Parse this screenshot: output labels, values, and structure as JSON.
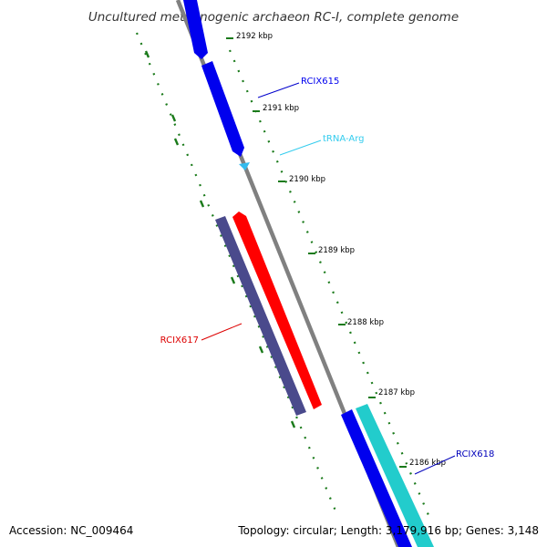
{
  "title": "Uncultured methanogenic archaeon RC-I, complete genome",
  "footer": {
    "accession": "Accession: NC_009464",
    "summary": "Topology: circular; Length: 3,179,916 bp; Genes: 3,148"
  },
  "ticks": [
    "2192 kbp",
    "2191 kbp",
    "2190 kbp",
    "2189 kbp",
    "2188 kbp",
    "2187 kbp",
    "2186 kbp"
  ],
  "features": [
    {
      "label": "RCIX615",
      "color": "#0000ee"
    },
    {
      "label": "tRNA-Arg",
      "color": "#33ccee"
    },
    {
      "label": "RCIX617",
      "color": "#dd0000"
    },
    {
      "label": "RCIX618",
      "color": "#0000bb"
    }
  ],
  "colors": {
    "backbone": "#888888",
    "tick": "#227722",
    "gene_blue": "#0000ee",
    "gene_red": "#ff0000",
    "gene_slate": "#4a4a8c",
    "gene_cyan": "#22cccc",
    "trna": "#33bbee"
  }
}
